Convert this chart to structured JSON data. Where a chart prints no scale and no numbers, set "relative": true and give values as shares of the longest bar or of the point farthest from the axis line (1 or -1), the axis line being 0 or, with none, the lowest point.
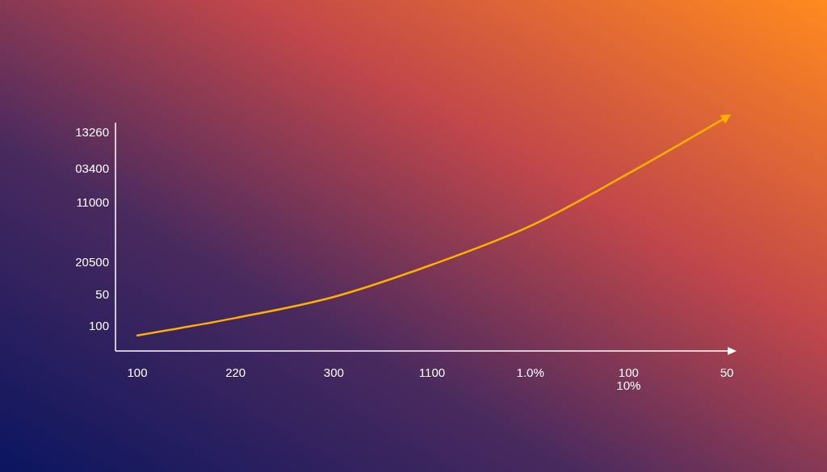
{
  "chart_data": {
    "type": "line",
    "relative": true,
    "categories": [
      "100",
      "220",
      "300",
      "1100",
      "1.0%",
      "100\n10%",
      "50"
    ],
    "annotations": [
      "13260",
      "03400",
      "11000",
      "20500",
      "50",
      "100"
    ],
    "series": [
      {
        "color": "#ffb000",
        "values": [
          0.066,
          0.141,
          0.231,
          0.369,
          0.534,
          0.759,
          1.0
        ]
      }
    ],
    "grid": false,
    "marker": "none",
    "line_style": "solid"
  }
}
